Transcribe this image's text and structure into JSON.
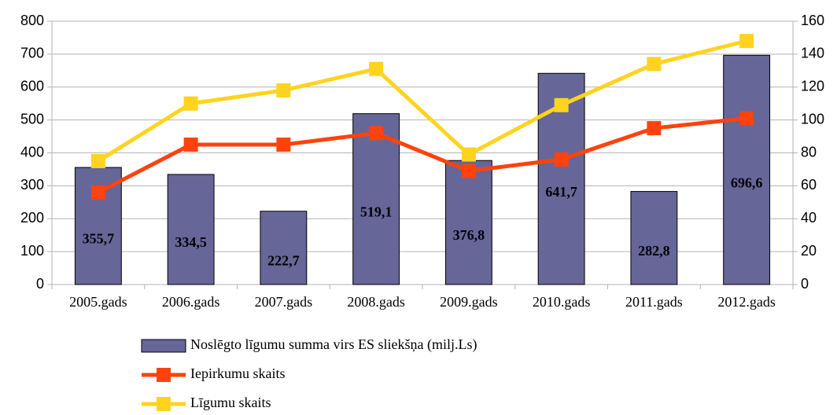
{
  "chart_data": {
    "type": "bar-line",
    "categories": [
      "2005.gads",
      "2006.gads",
      "2007.gads",
      "2008.gads",
      "2009.gads",
      "2010.gads",
      "2011.gads",
      "2012.gads"
    ],
    "series": [
      {
        "name": "Noslēgto līgumu summa virs ES sliekšņa (milj.Ls)",
        "type": "bar",
        "color": "#666699",
        "values": [
          355.7,
          334.5,
          222.7,
          519.1,
          376.8,
          641.7,
          282.8,
          696.6
        ],
        "value_labels": [
          "355,7",
          "334,5",
          "222,7",
          "519,1",
          "376,8",
          "641,7",
          "282,8",
          "696,6"
        ]
      },
      {
        "name": "Iepirkumu skaits",
        "type": "line",
        "axis": "y2",
        "color": "#ff420e",
        "values": [
          56,
          85,
          85,
          92,
          69,
          76,
          95,
          101
        ]
      },
      {
        "name": "Līgumu skaits",
        "type": "line",
        "axis": "y2",
        "color": "#ffd320",
        "values": [
          75,
          110,
          118,
          131,
          79,
          109,
          134,
          148
        ]
      }
    ],
    "ylim": [
      0,
      800
    ],
    "yticks": [
      0,
      100,
      200,
      300,
      400,
      500,
      600,
      700,
      800
    ],
    "y2lim": [
      0,
      160
    ],
    "y2ticks": [
      0,
      20,
      40,
      60,
      80,
      100,
      120,
      140,
      160
    ],
    "grid": true
  }
}
